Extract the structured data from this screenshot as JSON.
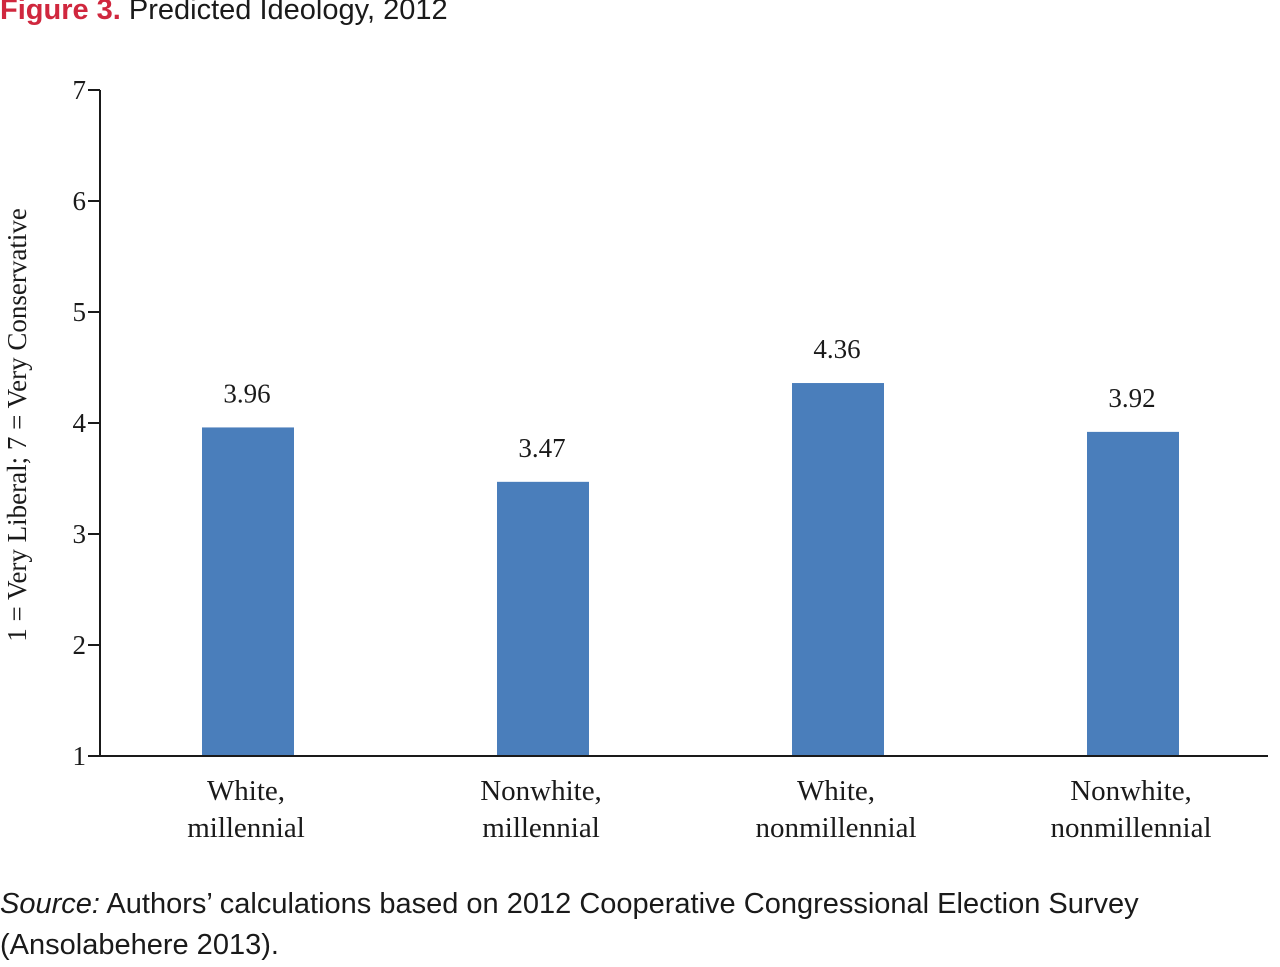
{
  "figure": {
    "label": "Figure 3.",
    "title": "Predicted Ideology, 2012"
  },
  "source": {
    "label": "Source:",
    "text": " Authors’ calculations based on 2012 Cooperative Congressional Election Survey (Ansolabehere 2013)."
  },
  "colors": {
    "bar": "#4a7ebb",
    "accent": "#d0273e",
    "axis": "#1a1a1a"
  },
  "chart_data": {
    "type": "bar",
    "title": "Predicted Ideology, 2012",
    "xlabel": "",
    "ylabel": "1 = Very Liberal; 7 = Very Conservative",
    "ylim": [
      1,
      7
    ],
    "yticks": [
      1,
      2,
      3,
      4,
      5,
      6,
      7
    ],
    "grid": false,
    "categories": [
      [
        "White,",
        "millennial"
      ],
      [
        "Nonwhite,",
        "millennial"
      ],
      [
        "White,",
        "nonmillennial"
      ],
      [
        "Nonwhite,",
        "nonmillennial"
      ]
    ],
    "values": [
      3.96,
      3.47,
      4.36,
      3.92
    ],
    "data_labels": [
      "3.96",
      "3.47",
      "4.36",
      "3.92"
    ]
  }
}
